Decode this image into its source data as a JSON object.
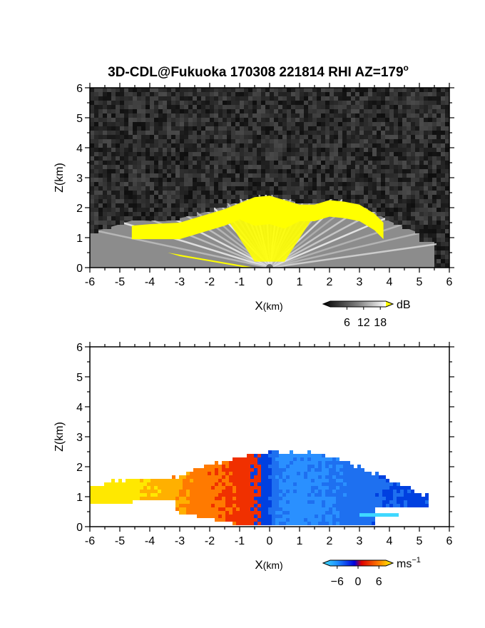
{
  "title": "3D-CDL@Fukuoka 170308 221814 RHI AZ=179",
  "title_sup": "o",
  "colors": {
    "background": "#ffffff",
    "axes": "#000000",
    "highlight": "#ffff00",
    "noise_dark": "#1e1e1e"
  },
  "chart_data": [
    {
      "type": "heatmap",
      "panel": "top",
      "xlabel_main": "X",
      "xlabel_unit": "(km)",
      "ylabel": "Z(km)",
      "xlim": [
        -6,
        6
      ],
      "ylim": [
        0,
        6
      ],
      "xticks": [
        "-6",
        "-5",
        "-4",
        "-3",
        "-2",
        "-1",
        "0",
        "1",
        "2",
        "3",
        "4",
        "5",
        "6"
      ],
      "yticks": [
        "0",
        "1",
        "2",
        "3",
        "4",
        "5",
        "6"
      ],
      "colorbar": {
        "unit": "dB",
        "ticks": [
          "6",
          "12",
          "18"
        ],
        "range": [
          0,
          20
        ]
      },
      "layer_top_km": [
        [
          -6,
          1.15
        ],
        [
          -5.5,
          1.3
        ],
        [
          -5,
          1.45
        ],
        [
          -4.5,
          1.6
        ],
        [
          -4,
          1.55
        ],
        [
          -3.5,
          1.55
        ],
        [
          -3,
          1.65
        ],
        [
          -2.5,
          1.75
        ],
        [
          -2,
          1.9
        ],
        [
          -1.5,
          2.05
        ],
        [
          -1,
          2.2
        ],
        [
          -0.5,
          2.35
        ],
        [
          0,
          2.4
        ],
        [
          0.5,
          2.3
        ],
        [
          1,
          2.15
        ],
        [
          1.5,
          2.15
        ],
        [
          2,
          2.25
        ],
        [
          2.5,
          2.2
        ],
        [
          3,
          2.1
        ],
        [
          3.5,
          1.85
        ],
        [
          4,
          1.55
        ],
        [
          4.5,
          1.35
        ],
        [
          5,
          1.15
        ],
        [
          5.5,
          1.05
        ]
      ],
      "saturated_top_km": [
        [
          -4.6,
          1.4
        ],
        [
          -4,
          1.45
        ],
        [
          -3,
          1.5
        ],
        [
          -2,
          1.8
        ],
        [
          -1.5,
          1.95
        ],
        [
          -1,
          2.15
        ],
        [
          -0.5,
          2.35
        ],
        [
          0,
          2.4
        ],
        [
          0.5,
          2.25
        ],
        [
          1,
          2.1
        ],
        [
          1.5,
          2.1
        ],
        [
          2,
          2.25
        ],
        [
          2.5,
          2.2
        ],
        [
          3,
          2.1
        ],
        [
          3.5,
          1.8
        ],
        [
          3.8,
          1.5
        ]
      ]
    },
    {
      "type": "heatmap",
      "panel": "bottom",
      "xlabel_main": "X",
      "xlabel_unit": "(km)",
      "ylabel": "Z(km)",
      "xlim": [
        -6,
        6
      ],
      "ylim": [
        0,
        6
      ],
      "xticks": [
        "-6",
        "-5",
        "-4",
        "-3",
        "-2",
        "-1",
        "0",
        "1",
        "2",
        "3",
        "4",
        "5",
        "6"
      ],
      "yticks": [
        "0",
        "1",
        "2",
        "3",
        "4",
        "5",
        "6"
      ],
      "colorbar": {
        "unit": "ms",
        "unit_sup": "−1",
        "ticks": [
          "−6",
          "0",
          "6"
        ],
        "range": [
          -8,
          8
        ]
      },
      "layer_top_km": [
        [
          -6,
          1.3
        ],
        [
          -5.5,
          1.45
        ],
        [
          -5,
          1.55
        ],
        [
          -4.5,
          1.6
        ],
        [
          -4,
          1.6
        ],
        [
          -3.5,
          1.6
        ],
        [
          -3,
          1.7
        ],
        [
          -2.5,
          1.9
        ],
        [
          -2,
          2.1
        ],
        [
          -1.5,
          2.2
        ],
        [
          -1,
          2.3
        ],
        [
          -0.5,
          2.45
        ],
        [
          0,
          2.5
        ],
        [
          0.5,
          2.45
        ],
        [
          1,
          2.5
        ],
        [
          1.5,
          2.45
        ],
        [
          2,
          2.35
        ],
        [
          2.5,
          2.2
        ],
        [
          3,
          2.0
        ],
        [
          3.5,
          1.8
        ],
        [
          4,
          1.6
        ],
        [
          4.5,
          1.35
        ],
        [
          5,
          1.15
        ],
        [
          5.3,
          1.0
        ]
      ],
      "velocity_ms": [
        [
          -6,
          6
        ],
        [
          -5,
          6
        ],
        [
          -4,
          5
        ],
        [
          -3,
          3.5
        ],
        [
          -2,
          2.5
        ],
        [
          -1,
          1.5
        ],
        [
          -0.3,
          0.5
        ],
        [
          0.3,
          -4
        ],
        [
          1,
          -4.5
        ],
        [
          2,
          -4
        ],
        [
          3,
          -3
        ],
        [
          4,
          -2
        ],
        [
          5,
          -1.5
        ]
      ]
    }
  ]
}
